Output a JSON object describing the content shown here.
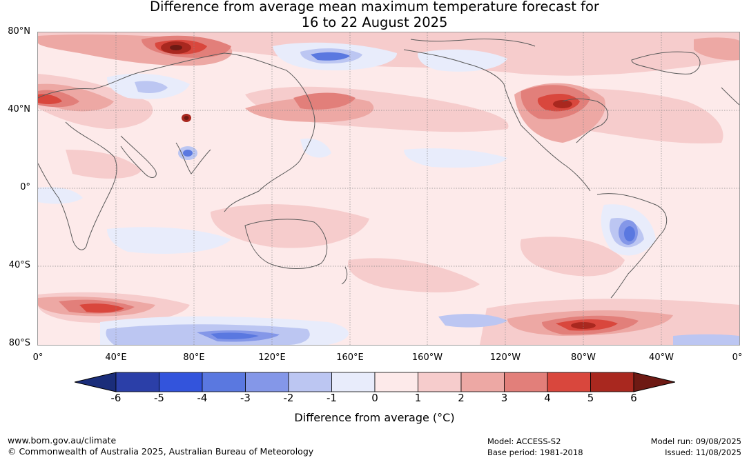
{
  "title_line1": "Difference from average mean maximum temperature forecast for",
  "title_line2": "16 to 22 August 2025",
  "map": {
    "lat_labels": [
      "80°N",
      "40°N",
      "0°",
      "40°S",
      "80°S"
    ],
    "lon_labels": [
      "0°",
      "40°E",
      "80°E",
      "120°E",
      "160°E",
      "160°W",
      "120°W",
      "80°W",
      "40°W",
      "0°"
    ]
  },
  "colorbar": {
    "ticks": [
      "-6",
      "-5",
      "-4",
      "-3",
      "-2",
      "-1",
      "0",
      "1",
      "2",
      "3",
      "4",
      "5",
      "6"
    ],
    "under_color": "#1a2d7a",
    "over_color": "#6e1a14",
    "colors": [
      "#2b3fa8",
      "#3354dc",
      "#5a78e0",
      "#8497e8",
      "#bcc6f2",
      "#e8ecfb",
      "#fdeaea",
      "#f6cccc",
      "#eda8a4",
      "#e27f7a",
      "#d9473d",
      "#a9281f"
    ],
    "label": "Difference from average (°C)"
  },
  "footer": {
    "website": "www.bom.gov.au/climate",
    "copyright": "© Commonwealth of Australia 2025, Australian Bureau of Meteorology",
    "model": "Model: ACCESS-S2",
    "base_period": "Base period: 1981-2018",
    "model_run": "Model run: 09/08/2025",
    "issued": "Issued: 11/08/2025"
  }
}
